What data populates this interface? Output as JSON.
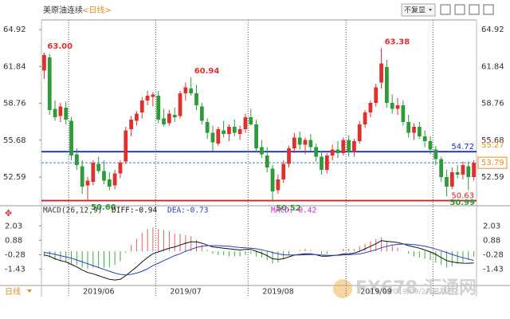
{
  "header": {
    "title": "美原油连续",
    "period": "<日线>",
    "adjust": "不复显"
  },
  "footer": {
    "period": "日线",
    "date": "2019/09/27 星期五"
  },
  "watermark": {
    "brand": "FX678",
    "name": "汇通网"
  },
  "chart_data": [
    {
      "type": "candlestick",
      "up_color": "#e0302e",
      "down_color": "#2f9a3a",
      "ylim": [
        50.2,
        65.6
      ],
      "yticks": [
        64.92,
        61.84,
        58.76,
        55.68,
        52.59
      ],
      "xticks": [
        {
          "value": 5,
          "label": "2019/06"
        },
        {
          "value": 21,
          "label": "2019/07"
        },
        {
          "value": 38,
          "label": "2019/08"
        },
        {
          "value": 56,
          "label": "2019/09"
        },
        {
          "value": 72,
          "label": ""
        }
      ],
      "candles": [
        [
          61.5,
          63.0,
          60.8,
          62.8
        ],
        [
          62.6,
          62.9,
          57.8,
          58.2
        ],
        [
          58.3,
          59.0,
          57.3,
          57.6
        ],
        [
          57.7,
          58.8,
          57.2,
          58.5
        ],
        [
          58.4,
          58.9,
          57.0,
          57.4
        ],
        [
          57.3,
          57.6,
          54.0,
          54.4
        ],
        [
          54.5,
          55.0,
          53.2,
          53.6
        ],
        [
          53.5,
          54.0,
          51.2,
          51.8
        ],
        [
          51.9,
          52.6,
          50.6,
          52.3
        ],
        [
          52.2,
          54.0,
          51.9,
          53.8
        ],
        [
          53.7,
          54.3,
          52.9,
          53.1
        ],
        [
          53.1,
          54.0,
          52.0,
          52.3
        ],
        [
          52.4,
          53.0,
          51.5,
          51.8
        ],
        [
          51.9,
          53.2,
          51.6,
          52.9
        ],
        [
          52.9,
          54.0,
          52.5,
          53.8
        ],
        [
          53.9,
          56.8,
          53.7,
          56.5
        ],
        [
          56.6,
          57.7,
          56.0,
          57.4
        ],
        [
          57.3,
          58.1,
          56.9,
          57.9
        ],
        [
          58.0,
          59.3,
          57.5,
          59.0
        ],
        [
          59.0,
          59.8,
          58.6,
          59.4
        ],
        [
          59.3,
          59.7,
          58.5,
          59.5
        ],
        [
          59.4,
          59.8,
          57.1,
          57.4
        ],
        [
          57.5,
          58.3,
          56.8,
          57.0
        ],
        [
          57.1,
          58.2,
          56.9,
          57.9
        ],
        [
          57.8,
          58.4,
          57.2,
          57.6
        ],
        [
          57.7,
          59.8,
          57.5,
          59.6
        ],
        [
          59.6,
          60.5,
          59.0,
          60.1
        ],
        [
          60.0,
          60.94,
          59.4,
          59.6
        ],
        [
          59.6,
          60.3,
          58.2,
          58.6
        ],
        [
          58.5,
          58.8,
          57.0,
          57.3
        ],
        [
          57.2,
          57.5,
          55.8,
          56.3
        ],
        [
          56.3,
          56.9,
          54.8,
          55.5
        ],
        [
          55.4,
          56.8,
          55.2,
          56.6
        ],
        [
          56.5,
          57.3,
          55.9,
          56.2
        ],
        [
          56.2,
          57.0,
          55.6,
          56.8
        ],
        [
          56.8,
          57.4,
          56.0,
          56.3
        ],
        [
          56.2,
          56.9,
          55.7,
          56.6
        ],
        [
          56.6,
          57.9,
          56.3,
          57.6
        ],
        [
          57.6,
          58.3,
          56.9,
          57.0
        ],
        [
          57.0,
          57.4,
          54.7,
          55.0
        ],
        [
          55.1,
          55.7,
          54.2,
          54.5
        ],
        [
          54.4,
          55.1,
          53.0,
          53.4
        ],
        [
          53.3,
          53.6,
          50.52,
          51.4
        ],
        [
          51.5,
          52.8,
          51.2,
          52.4
        ],
        [
          52.4,
          54.0,
          52.1,
          53.7
        ],
        [
          53.7,
          55.2,
          53.4,
          55.0
        ],
        [
          55.0,
          56.3,
          54.6,
          55.9
        ],
        [
          55.9,
          56.4,
          54.9,
          55.3
        ],
        [
          55.3,
          55.9,
          54.5,
          55.7
        ],
        [
          55.7,
          56.2,
          54.8,
          55.1
        ],
        [
          55.1,
          55.4,
          53.9,
          54.3
        ],
        [
          54.3,
          54.8,
          52.8,
          53.2
        ],
        [
          53.2,
          54.6,
          52.9,
          54.4
        ],
        [
          54.4,
          55.3,
          54.0,
          54.9
        ],
        [
          54.9,
          55.6,
          54.2,
          54.6
        ],
        [
          54.6,
          55.9,
          54.4,
          55.7
        ],
        [
          55.7,
          56.1,
          54.3,
          54.7
        ],
        [
          54.7,
          55.8,
          54.3,
          55.6
        ],
        [
          55.6,
          57.3,
          55.4,
          57.0
        ],
        [
          57.0,
          58.2,
          56.7,
          58.0
        ],
        [
          58.0,
          59.0,
          57.6,
          58.8
        ],
        [
          58.8,
          60.4,
          58.5,
          60.1
        ],
        [
          60.5,
          63.38,
          60.0,
          62.1
        ],
        [
          61.8,
          62.4,
          58.4,
          58.8
        ],
        [
          58.8,
          59.5,
          57.9,
          58.3
        ],
        [
          58.3,
          59.2,
          57.8,
          58.6
        ],
        [
          58.6,
          59.0,
          56.9,
          57.2
        ],
        [
          57.2,
          57.8,
          55.9,
          56.3
        ],
        [
          56.3,
          57.1,
          55.7,
          56.8
        ],
        [
          56.8,
          57.2,
          55.8,
          56.0
        ],
        [
          56.0,
          56.5,
          55.1,
          55.6
        ],
        [
          55.6,
          56.0,
          54.5,
          54.9
        ],
        [
          54.9,
          55.2,
          53.6,
          54.1
        ],
        [
          54.1,
          54.3,
          52.2,
          52.6
        ],
        [
          52.6,
          53.2,
          50.99,
          51.8
        ],
        [
          51.8,
          53.4,
          51.6,
          53.0
        ],
        [
          53.0,
          53.6,
          52.5,
          52.8
        ],
        [
          52.8,
          53.9,
          52.4,
          53.6
        ],
        [
          53.5,
          53.9,
          51.5,
          52.6
        ],
        [
          52.6,
          54.0,
          52.3,
          53.79
        ]
      ],
      "annotations": [
        {
          "index": 0,
          "value": 63.0,
          "label": "63.00",
          "kind": "high"
        },
        {
          "index": 27,
          "value": 60.94,
          "label": "60.94",
          "kind": "high"
        },
        {
          "index": 62,
          "value": 63.38,
          "label": "63.38",
          "kind": "high"
        },
        {
          "index": 8,
          "value": 50.6,
          "label": "50.60",
          "kind": "low"
        },
        {
          "index": 42,
          "value": 50.52,
          "label": "50.52",
          "kind": "low"
        },
        {
          "index": 74,
          "value": 50.99,
          "label": "50.99",
          "kind": "low"
        }
      ],
      "hlines": [
        {
          "value": 54.72,
          "label": "54.72",
          "color": "#1b2fd0",
          "style": "solid"
        },
        {
          "value": 50.63,
          "label": "50.63",
          "color": "#d42020",
          "style": "solid"
        },
        {
          "value": 53.79,
          "label": "53.79",
          "color": "#3a7fd0",
          "style": "dashed"
        }
      ],
      "axis_marks": [
        {
          "value": 55.27,
          "label": "55.27",
          "color": "#f08a1c"
        }
      ]
    },
    {
      "type": "macd",
      "title": "MACD(26,12,9)",
      "ylim": [
        -2.55,
        2.88
      ],
      "yticks": [
        2.03,
        0.88,
        -0.28,
        -1.43
      ],
      "up_color": "#e06060",
      "down_color": "#3fa83f",
      "histogram": {
        "name": "MACD:-0.42",
        "color": "#d020d0",
        "values": [
          -0.4,
          -0.5,
          -0.7,
          -0.8,
          -0.8,
          -1.0,
          -1.1,
          -1.3,
          -1.4,
          -1.3,
          -1.3,
          -1.3,
          -1.3,
          -1.1,
          -0.8,
          -0.1,
          0.5,
          1.0,
          1.5,
          1.8,
          1.9,
          1.8,
          1.7,
          1.6,
          1.4,
          1.4,
          1.3,
          1.2,
          0.9,
          0.5,
          0.1,
          -0.2,
          -0.3,
          -0.3,
          -0.4,
          -0.4,
          -0.4,
          -0.3,
          -0.2,
          -0.4,
          -0.5,
          -0.7,
          -1.0,
          -0.9,
          -0.6,
          -0.3,
          0.0,
          0.1,
          0.2,
          0.1,
          0.0,
          -0.2,
          -0.2,
          0.0,
          0.0,
          0.2,
          0.2,
          0.2,
          0.4,
          0.6,
          0.8,
          1.0,
          1.1,
          0.8,
          0.5,
          0.3,
          0.0,
          -0.2,
          -0.4,
          -0.5,
          -0.6,
          -0.7,
          -0.9,
          -1.1,
          -1.3,
          -1.2,
          -1.0,
          -0.9,
          -0.7,
          -0.42
        ]
      },
      "series": [
        {
          "name": "DIFF:-0.94",
          "color": "#111111",
          "values": [
            -0.3,
            -0.4,
            -0.6,
            -0.75,
            -0.85,
            -1.05,
            -1.25,
            -1.5,
            -1.7,
            -1.8,
            -1.95,
            -2.1,
            -2.25,
            -2.3,
            -2.25,
            -1.95,
            -1.6,
            -1.25,
            -0.85,
            -0.5,
            -0.2,
            -0.05,
            0.1,
            0.25,
            0.35,
            0.5,
            0.65,
            0.75,
            0.75,
            0.65,
            0.5,
            0.35,
            0.3,
            0.25,
            0.2,
            0.15,
            0.1,
            0.15,
            0.15,
            0.0,
            -0.15,
            -0.35,
            -0.6,
            -0.65,
            -0.6,
            -0.45,
            -0.3,
            -0.25,
            -0.2,
            -0.2,
            -0.28,
            -0.4,
            -0.4,
            -0.35,
            -0.3,
            -0.22,
            -0.2,
            -0.15,
            0.0,
            0.2,
            0.4,
            0.6,
            0.85,
            0.8,
            0.75,
            0.7,
            0.6,
            0.45,
            0.35,
            0.25,
            0.1,
            -0.05,
            -0.25,
            -0.5,
            -0.75,
            -0.85,
            -0.92,
            -0.95,
            -0.96,
            -0.94
          ]
        },
        {
          "name": "DEA:-0.73",
          "color": "#2a3fc0",
          "values": [
            -0.1,
            -0.15,
            -0.25,
            -0.35,
            -0.45,
            -0.55,
            -0.7,
            -0.85,
            -1.0,
            -1.15,
            -1.3,
            -1.45,
            -1.6,
            -1.75,
            -1.85,
            -1.9,
            -1.85,
            -1.75,
            -1.6,
            -1.4,
            -1.15,
            -0.95,
            -0.75,
            -0.55,
            -0.35,
            -0.2,
            0.0,
            0.15,
            0.3,
            0.4,
            0.45,
            0.45,
            0.45,
            0.42,
            0.4,
            0.35,
            0.3,
            0.28,
            0.25,
            0.2,
            0.12,
            0.02,
            -0.1,
            -0.2,
            -0.28,
            -0.3,
            -0.3,
            -0.3,
            -0.28,
            -0.27,
            -0.27,
            -0.3,
            -0.32,
            -0.33,
            -0.32,
            -0.3,
            -0.28,
            -0.25,
            -0.2,
            -0.12,
            0.0,
            0.12,
            0.28,
            0.4,
            0.5,
            0.55,
            0.58,
            0.57,
            0.53,
            0.48,
            0.4,
            0.3,
            0.18,
            0.05,
            -0.1,
            -0.25,
            -0.4,
            -0.52,
            -0.62,
            -0.73
          ]
        }
      ]
    }
  ]
}
